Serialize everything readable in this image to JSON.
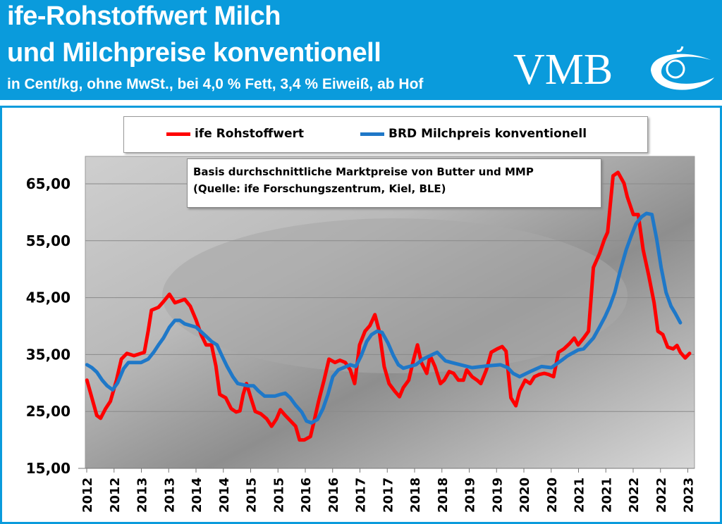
{
  "header": {
    "title_line1": "ife-Rohstoffwert Milch",
    "title_line2": "und Milchpreise konventionell",
    "subtitle": "in Cent/kg, ohne MwSt., bei 4,0 % Fett, 3,4 % Eiweiß, ab Hof",
    "logo_text": "VMB",
    "background_color": "#0a9bdc"
  },
  "chart_data": {
    "type": "line",
    "title": "",
    "xlabel": "",
    "ylabel": "",
    "annotation_line1": "Basis durchschnittliche Marktpreise von Butter und MMP",
    "annotation_line2": "(Quelle: ife Forschungszentrum, Kiel, BLE)",
    "ylim": [
      15,
      70
    ],
    "yticks": [
      "15,00",
      "25,00",
      "35,00",
      "45,00",
      "55,00",
      "65,00"
    ],
    "ytick_values": [
      15,
      25,
      35,
      45,
      55,
      65
    ],
    "xlim": [
      2012.0,
      2023.15
    ],
    "xtick_labels": [
      "2012",
      "2012",
      "2013",
      "2013",
      "2014",
      "2014",
      "2015",
      "2015",
      "2016",
      "2016",
      "2017",
      "2017",
      "2018",
      "2018",
      "2019",
      "2019",
      "2020",
      "2020",
      "2021",
      "2021",
      "2022",
      "2022",
      "2023",
      "2023"
    ],
    "grid": "horizontal",
    "legend_placement": "top",
    "series": [
      {
        "name": "ife Rohstoffwert",
        "color": "#ff0000",
        "points": [
          [
            2012.03,
            30.5
          ],
          [
            2012.12,
            27.4
          ],
          [
            2012.21,
            24.3
          ],
          [
            2012.28,
            23.8
          ],
          [
            2012.37,
            25.5
          ],
          [
            2012.46,
            26.8
          ],
          [
            2012.57,
            30.5
          ],
          [
            2012.66,
            34.2
          ],
          [
            2012.76,
            35.2
          ],
          [
            2012.89,
            34.8
          ],
          [
            2013.08,
            35.4
          ],
          [
            2013.15,
            39.1
          ],
          [
            2013.21,
            42.8
          ],
          [
            2013.34,
            43.3
          ],
          [
            2013.43,
            44.3
          ],
          [
            2013.54,
            45.6
          ],
          [
            2013.64,
            44.1
          ],
          [
            2013.82,
            44.7
          ],
          [
            2013.92,
            43.5
          ],
          [
            2014.03,
            41.0
          ],
          [
            2014.12,
            38.5
          ],
          [
            2014.21,
            36.7
          ],
          [
            2014.31,
            36.7
          ],
          [
            2014.39,
            33.0
          ],
          [
            2014.46,
            28.0
          ],
          [
            2014.57,
            27.4
          ],
          [
            2014.67,
            25.5
          ],
          [
            2014.76,
            24.9
          ],
          [
            2014.83,
            25.1
          ],
          [
            2014.89,
            28.0
          ],
          [
            2014.95,
            29.9
          ],
          [
            2015.03,
            27.4
          ],
          [
            2015.11,
            25.0
          ],
          [
            2015.21,
            24.6
          ],
          [
            2015.32,
            23.7
          ],
          [
            2015.41,
            22.4
          ],
          [
            2015.5,
            23.7
          ],
          [
            2015.57,
            25.3
          ],
          [
            2015.66,
            24.3
          ],
          [
            2015.75,
            23.4
          ],
          [
            2015.85,
            22.4
          ],
          [
            2015.92,
            20.0
          ],
          [
            2016.01,
            20.0
          ],
          [
            2016.12,
            20.6
          ],
          [
            2016.18,
            23.0
          ],
          [
            2016.27,
            26.8
          ],
          [
            2016.37,
            30.5
          ],
          [
            2016.46,
            34.2
          ],
          [
            2016.57,
            33.6
          ],
          [
            2016.66,
            34.0
          ],
          [
            2016.76,
            33.6
          ],
          [
            2016.85,
            32.3
          ],
          [
            2016.93,
            29.9
          ],
          [
            2017.02,
            36.7
          ],
          [
            2017.12,
            39.1
          ],
          [
            2017.21,
            40.1
          ],
          [
            2017.3,
            42.0
          ],
          [
            2017.38,
            39.1
          ],
          [
            2017.47,
            32.9
          ],
          [
            2017.56,
            29.9
          ],
          [
            2017.66,
            28.6
          ],
          [
            2017.75,
            27.6
          ],
          [
            2017.82,
            29.2
          ],
          [
            2017.92,
            30.5
          ],
          [
            2018.01,
            34.2
          ],
          [
            2018.08,
            36.7
          ],
          [
            2018.15,
            33.6
          ],
          [
            2018.25,
            31.7
          ],
          [
            2018.31,
            34.8
          ],
          [
            2018.4,
            32.9
          ],
          [
            2018.5,
            29.9
          ],
          [
            2018.57,
            30.5
          ],
          [
            2018.66,
            32.0
          ],
          [
            2018.74,
            31.7
          ],
          [
            2018.83,
            30.5
          ],
          [
            2018.92,
            30.5
          ],
          [
            2018.98,
            32.3
          ],
          [
            2019.08,
            31.1
          ],
          [
            2019.17,
            30.5
          ],
          [
            2019.24,
            29.9
          ],
          [
            2019.34,
            32.3
          ],
          [
            2019.43,
            35.4
          ],
          [
            2019.54,
            36.0
          ],
          [
            2019.63,
            36.4
          ],
          [
            2019.7,
            35.6
          ],
          [
            2019.79,
            27.4
          ],
          [
            2019.88,
            26.0
          ],
          [
            2019.95,
            28.6
          ],
          [
            2020.05,
            30.5
          ],
          [
            2020.14,
            29.9
          ],
          [
            2020.22,
            31.1
          ],
          [
            2020.31,
            31.5
          ],
          [
            2020.4,
            31.7
          ],
          [
            2020.48,
            31.5
          ],
          [
            2020.57,
            31.1
          ],
          [
            2020.66,
            35.4
          ],
          [
            2020.76,
            36.0
          ],
          [
            2020.86,
            36.9
          ],
          [
            2020.95,
            37.9
          ],
          [
            2021.02,
            36.7
          ],
          [
            2021.12,
            37.9
          ],
          [
            2021.21,
            39.1
          ],
          [
            2021.3,
            50.3
          ],
          [
            2021.41,
            52.7
          ],
          [
            2021.5,
            55.2
          ],
          [
            2021.56,
            56.5
          ],
          [
            2021.66,
            66.4
          ],
          [
            2021.75,
            67.0
          ],
          [
            2021.86,
            65.1
          ],
          [
            2021.92,
            62.7
          ],
          [
            2022.03,
            59.6
          ],
          [
            2022.12,
            59.6
          ],
          [
            2022.21,
            53.4
          ],
          [
            2022.31,
            49.0
          ],
          [
            2022.41,
            44.1
          ],
          [
            2022.48,
            39.1
          ],
          [
            2022.57,
            38.5
          ],
          [
            2022.66,
            36.3
          ],
          [
            2022.76,
            36.0
          ],
          [
            2022.83,
            36.6
          ],
          [
            2022.89,
            35.4
          ],
          [
            2022.98,
            34.4
          ],
          [
            2023.06,
            35.2
          ]
        ]
      },
      {
        "name": "BRD Milchpreis konventionell",
        "color": "#1f78c8",
        "points": [
          [
            2012.03,
            33.2
          ],
          [
            2012.12,
            32.7
          ],
          [
            2012.21,
            31.9
          ],
          [
            2012.31,
            30.5
          ],
          [
            2012.4,
            29.5
          ],
          [
            2012.5,
            28.8
          ],
          [
            2012.59,
            30.0
          ],
          [
            2012.7,
            32.5
          ],
          [
            2012.79,
            33.6
          ],
          [
            2013.02,
            33.6
          ],
          [
            2013.15,
            34.2
          ],
          [
            2013.25,
            35.4
          ],
          [
            2013.34,
            36.7
          ],
          [
            2013.43,
            37.9
          ],
          [
            2013.54,
            39.8
          ],
          [
            2013.64,
            41.0
          ],
          [
            2013.73,
            41.0
          ],
          [
            2013.82,
            40.4
          ],
          [
            2014.03,
            39.8
          ],
          [
            2014.21,
            38.2
          ],
          [
            2014.31,
            37.3
          ],
          [
            2014.41,
            36.7
          ],
          [
            2014.5,
            34.8
          ],
          [
            2014.59,
            33.0
          ],
          [
            2014.7,
            31.1
          ],
          [
            2014.79,
            29.9
          ],
          [
            2014.98,
            29.5
          ],
          [
            2015.08,
            29.5
          ],
          [
            2015.17,
            28.6
          ],
          [
            2015.28,
            27.7
          ],
          [
            2015.47,
            27.7
          ],
          [
            2015.57,
            28.0
          ],
          [
            2015.66,
            28.2
          ],
          [
            2015.75,
            27.4
          ],
          [
            2015.85,
            26.1
          ],
          [
            2015.96,
            24.9
          ],
          [
            2016.05,
            23.3
          ],
          [
            2016.14,
            23.0
          ],
          [
            2016.25,
            23.6
          ],
          [
            2016.35,
            25.5
          ],
          [
            2016.44,
            28.0
          ],
          [
            2016.53,
            31.1
          ],
          [
            2016.63,
            32.3
          ],
          [
            2016.85,
            33.2
          ],
          [
            2016.95,
            32.9
          ],
          [
            2017.05,
            34.8
          ],
          [
            2017.15,
            37.3
          ],
          [
            2017.24,
            38.5
          ],
          [
            2017.34,
            39.1
          ],
          [
            2017.43,
            38.9
          ],
          [
            2017.54,
            37.0
          ],
          [
            2017.64,
            34.8
          ],
          [
            2017.73,
            33.2
          ],
          [
            2017.82,
            32.6
          ],
          [
            2018.05,
            33.2
          ],
          [
            2018.18,
            34.2
          ],
          [
            2018.31,
            34.8
          ],
          [
            2018.44,
            35.4
          ],
          [
            2018.59,
            33.9
          ],
          [
            2018.7,
            33.6
          ],
          [
            2018.95,
            33.0
          ],
          [
            2019.08,
            32.7
          ],
          [
            2019.34,
            33.0
          ],
          [
            2019.6,
            33.2
          ],
          [
            2019.73,
            32.7
          ],
          [
            2019.83,
            31.7
          ],
          [
            2019.95,
            31.1
          ],
          [
            2020.14,
            32.0
          ],
          [
            2020.35,
            32.9
          ],
          [
            2020.53,
            32.7
          ],
          [
            2020.72,
            34.0
          ],
          [
            2020.83,
            34.8
          ],
          [
            2021.02,
            35.8
          ],
          [
            2021.12,
            36.0
          ],
          [
            2021.3,
            37.9
          ],
          [
            2021.41,
            39.8
          ],
          [
            2021.51,
            41.6
          ],
          [
            2021.6,
            43.5
          ],
          [
            2021.69,
            45.9
          ],
          [
            2021.79,
            49.7
          ],
          [
            2021.9,
            53.4
          ],
          [
            2021.99,
            55.8
          ],
          [
            2022.08,
            58.0
          ],
          [
            2022.18,
            59.2
          ],
          [
            2022.27,
            59.8
          ],
          [
            2022.37,
            59.6
          ],
          [
            2022.46,
            55.2
          ],
          [
            2022.54,
            50.3
          ],
          [
            2022.63,
            45.9
          ],
          [
            2022.72,
            43.5
          ],
          [
            2022.8,
            42.2
          ],
          [
            2022.89,
            40.6
          ]
        ]
      }
    ]
  }
}
